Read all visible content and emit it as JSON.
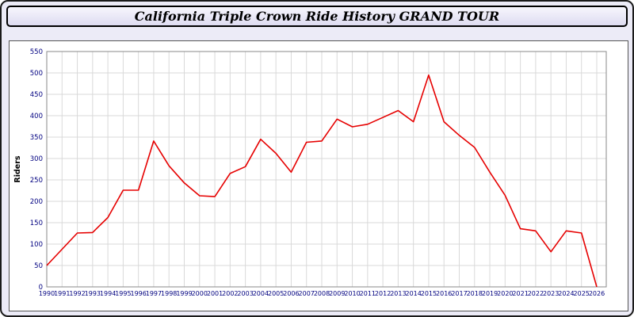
{
  "title": "California Triple Crown Ride History GRAND TOUR",
  "chart_data": {
    "type": "line",
    "title": "California Triple Crown Ride History GRAND TOUR",
    "xlabel": "",
    "ylabel": "Riders",
    "ylim": [
      0,
      550
    ],
    "ytick_step": 50,
    "grid": true,
    "legend": "none",
    "line_color": "#e60000",
    "axis_label_color": "#000080",
    "grid_color": "#d9d9d9",
    "plot_border_color": "#8a8a8a",
    "x": [
      1990,
      1991,
      1992,
      1993,
      1994,
      1995,
      1996,
      1997,
      1998,
      1999,
      2000,
      2001,
      2002,
      2003,
      2004,
      2005,
      2006,
      2007,
      2008,
      2009,
      2010,
      2011,
      2012,
      2013,
      2014,
      2015,
      2016,
      2017,
      2018,
      2019,
      2020,
      2021,
      2022,
      2023,
      2024,
      2025,
      2026
    ],
    "values": [
      50,
      88,
      126,
      127,
      162,
      226,
      226,
      341,
      283,
      243,
      213,
      211,
      265,
      281,
      345,
      312,
      268,
      338,
      341,
      392,
      374,
      380,
      396,
      412,
      386,
      495,
      386,
      354,
      326,
      268,
      214,
      136,
      131,
      82,
      131,
      126,
      0
    ]
  }
}
